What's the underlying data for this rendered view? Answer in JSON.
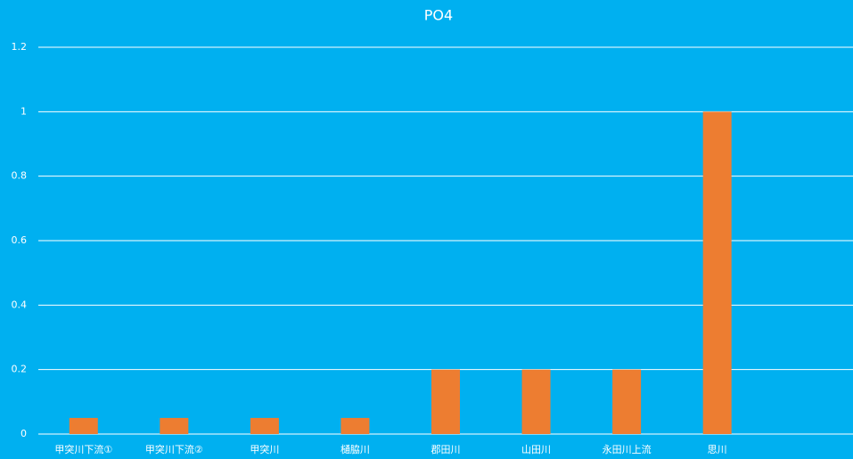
{
  "chart_data": {
    "type": "bar",
    "title": "PO4",
    "categories": [
      "甲突川下流①",
      "甲突川下流②",
      "甲突川",
      "樋脇川",
      "郡田川",
      "山田川",
      "永田川上流",
      "思川",
      null
    ],
    "values": [
      0.05,
      0.05,
      0.05,
      0.05,
      0.2,
      0.2,
      0.2,
      1,
      null
    ],
    "color": "#ed7d31",
    "ylim": [
      0,
      1.2
    ],
    "yticks": [
      0,
      0.2,
      0.4,
      0.6,
      0.8,
      1,
      1.2
    ],
    "grid": true
  }
}
